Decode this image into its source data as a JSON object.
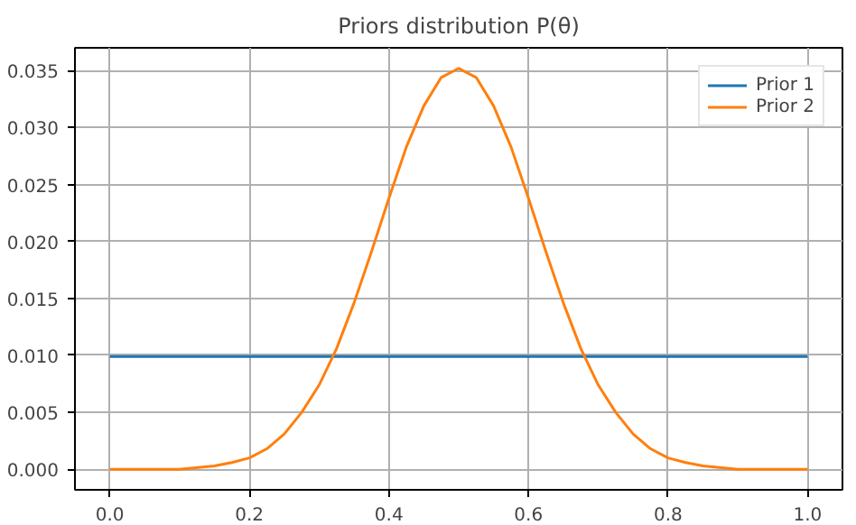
{
  "chart_data": {
    "type": "line",
    "title": "Priors distribution P(θ)",
    "xlim": [
      -0.05,
      1.05
    ],
    "ylim": [
      -0.0018,
      0.037
    ],
    "xticks": [
      {
        "value": 0,
        "label": "0.0"
      },
      {
        "value": 0.2,
        "label": "0.2"
      },
      {
        "value": 0.4,
        "label": "0.4"
      },
      {
        "value": 0.6,
        "label": "0.6"
      },
      {
        "value": 0.8,
        "label": "0.8"
      },
      {
        "value": 1,
        "label": "1.0"
      }
    ],
    "yticks": [
      {
        "value": 0,
        "label": "0.000"
      },
      {
        "value": 0.005,
        "label": "0.005"
      },
      {
        "value": 0.01,
        "label": "0.010"
      },
      {
        "value": 0.015,
        "label": "0.015"
      },
      {
        "value": 0.02,
        "label": "0.020"
      },
      {
        "value": 0.025,
        "label": "0.025"
      },
      {
        "value": 0.03,
        "label": "0.030"
      },
      {
        "value": 0.035,
        "label": "0.035"
      }
    ],
    "grid": true,
    "legend": "top right",
    "line_style": "solid",
    "marker": "none",
    "series": [
      {
        "name": "Prior 1",
        "color": "#1f77b4",
        "x": [
          0,
          1
        ],
        "values": [
          0.0099,
          0.0099
        ]
      },
      {
        "name": "Prior 2",
        "color": "#ff7f0e",
        "x": [
          0,
          0.1,
          0.15,
          0.175,
          0.2,
          0.225,
          0.25,
          0.275,
          0.3,
          0.325,
          0.35,
          0.375,
          0.4,
          0.425,
          0.45,
          0.475,
          0.5,
          0.525,
          0.55,
          0.575,
          0.6,
          0.625,
          0.65,
          0.675,
          0.7,
          0.725,
          0.75,
          0.775,
          0.8,
          0.825,
          0.85,
          0.9,
          1
        ],
        "values": [
          0,
          0,
          0.0003,
          0.0006,
          0.001,
          0.0018,
          0.0031,
          0.005,
          0.0074,
          0.0106,
          0.0146,
          0.0191,
          0.0238,
          0.0283,
          0.0319,
          0.0344,
          0.0352,
          0.0344,
          0.0319,
          0.0283,
          0.0238,
          0.0191,
          0.0146,
          0.0106,
          0.0074,
          0.005,
          0.0031,
          0.0018,
          0.001,
          0.0006,
          0.0003,
          0,
          0
        ]
      }
    ]
  }
}
